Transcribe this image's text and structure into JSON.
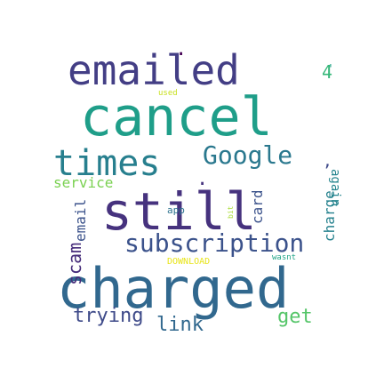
{
  "wordcloud": {
    "words": [
      {
        "text": "cancel",
        "color": "#1f9e89"
      },
      {
        "text": "charged",
        "color": "#31688e"
      },
      {
        "text": "still",
        "color": "#46327e"
      },
      {
        "text": "emailed",
        "color": "#433e85"
      },
      {
        "text": "subscription",
        "color": "#3b528b"
      },
      {
        "text": "times",
        "color": "#277f8e"
      },
      {
        "text": "Google",
        "color": "#2a788e"
      },
      {
        "text": "trying",
        "color": "#3e4a89"
      },
      {
        "text": "link",
        "color": "#31688e"
      },
      {
        "text": "get",
        "color": "#54c568"
      },
      {
        "text": "service",
        "color": "#7ad151"
      },
      {
        "text": "scam",
        "color": "#472d7b"
      },
      {
        "text": "email",
        "color": "#3b528b"
      },
      {
        "text": "charge",
        "color": "#26828e"
      },
      {
        "text": "again",
        "color": "#25858e"
      },
      {
        "text": "card",
        "color": "#3b528b"
      },
      {
        "text": "4",
        "color": "#35b779"
      },
      {
        "text": "app",
        "color": "#2c728e"
      },
      {
        "text": "DOWNLOAD",
        "color": "#e8e419"
      },
      {
        "text": "used",
        "color": "#c8e020"
      },
      {
        "text": "bit",
        "color": "#a8db34"
      },
      {
        "text": "wasnt",
        "color": "#20a486"
      },
      {
        "text": ",",
        "color": "#3e4989"
      },
      {
        "text": ".",
        "color": "#440154"
      },
      {
        "text": ".",
        "color": "#46337e"
      },
      {
        "text": "-",
        "color": "#1fa187"
      }
    ]
  }
}
